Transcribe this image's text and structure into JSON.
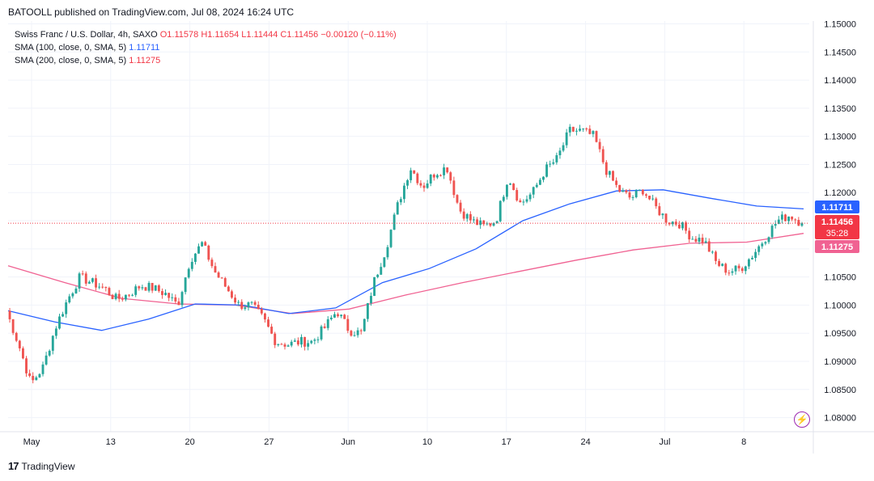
{
  "header": {
    "published": "BATOOLL published on TradingView.com, Jul 08, 2024 16:24 UTC"
  },
  "legend": {
    "symbol": "Swiss Franc / U.S. Dollar, 4h, SAXO",
    "open": "O1.11578",
    "high": "H1.11654",
    "low": "L1.11444",
    "close": "C1.11456",
    "change": "−0.00120 (−0.11%)",
    "sma100_label": "SMA (100, close, 0, SMA, 5)",
    "sma100_value": "1.11711",
    "sma200_label": "SMA (200, close, 0, SMA, 5)",
    "sma200_value": "1.11275"
  },
  "price_tags": {
    "sma100": "1.11711",
    "last": "1.11456",
    "countdown": "35:28",
    "sma200": "1.11275"
  },
  "footer": {
    "brand": "TradingView"
  },
  "colors": {
    "up": "#26a69a",
    "down": "#ef5350",
    "sma100": "#2962ff",
    "sma200": "#f06292",
    "last_price": "#f23645"
  },
  "chart_data": {
    "type": "candlestick",
    "y_axis": {
      "ylim": [
        1.0775,
        1.1505
      ],
      "ticks": [
        "1.15000",
        "1.14500",
        "1.14000",
        "1.13500",
        "1.13000",
        "1.12500",
        "1.12000",
        "1.11500",
        "1.11000",
        "1.10500",
        "1.10000",
        "1.09500",
        "1.09000",
        "1.08500",
        "1.08000"
      ]
    },
    "x_axis": {
      "ticks": [
        "May",
        "13",
        "20",
        "27",
        "Jun",
        "10",
        "17",
        "24",
        "Jul",
        "8"
      ]
    },
    "close_path": [
      [
        "Apr 30",
        1.099
      ],
      [
        "May 1",
        1.093
      ],
      [
        "May 2",
        1.086
      ],
      [
        "May 3",
        1.089
      ],
      [
        "May 3b",
        1.096
      ],
      [
        "May 4",
        1.101
      ],
      [
        "May 6",
        1.105
      ],
      [
        "May 7",
        1.104
      ],
      [
        "May 8",
        1.103
      ],
      [
        "May 9",
        1.101
      ],
      [
        "May 10",
        1.102
      ],
      [
        "May 12",
        1.1035
      ],
      [
        "May 13",
        1.103
      ],
      [
        "May 14",
        1.102
      ],
      [
        "May 15",
        1.1
      ],
      [
        "May 16",
        1.108
      ],
      [
        "May 17",
        1.111
      ],
      [
        "May 17b",
        1.106
      ],
      [
        "May 18",
        1.103
      ],
      [
        "May 20",
        1.1
      ],
      [
        "May 21",
        1.1
      ],
      [
        "May 22",
        1.0975
      ],
      [
        "May 23",
        1.0935
      ],
      [
        "May 24",
        1.093
      ],
      [
        "May 26",
        1.0935
      ],
      [
        "May 27",
        1.0935
      ],
      [
        "May 28",
        1.096
      ],
      [
        "May 29",
        1.099
      ],
      [
        "May 30",
        1.0955
      ],
      [
        "May 31",
        1.095
      ],
      [
        "Jun 1",
        1.104
      ],
      [
        "Jun 2",
        1.11
      ],
      [
        "Jun 3",
        1.118
      ],
      [
        "Jun 4",
        1.1245
      ],
      [
        "Jun 5",
        1.121
      ],
      [
        "Jun 6",
        1.1235
      ],
      [
        "Jun 7",
        1.1245
      ],
      [
        "Jun 8",
        1.117
      ],
      [
        "Jun 10",
        1.115
      ],
      [
        "Jun 11",
        1.114
      ],
      [
        "Jun 12",
        1.115
      ],
      [
        "Jun 13",
        1.123
      ],
      [
        "Jun 14",
        1.118
      ],
      [
        "Jun 15",
        1.12
      ],
      [
        "Jun 17",
        1.124
      ],
      [
        "Jun 18",
        1.126
      ],
      [
        "Jun 19",
        1.131
      ],
      [
        "Jun 20",
        1.131
      ],
      [
        "Jun 21",
        1.13
      ],
      [
        "Jun 21b",
        1.124
      ],
      [
        "Jun 22",
        1.1205
      ],
      [
        "Jun 24",
        1.119
      ],
      [
        "Jun 25",
        1.1205
      ],
      [
        "Jun 26",
        1.1175
      ],
      [
        "Jun 27",
        1.115
      ],
      [
        "Jun 28",
        1.1145
      ],
      [
        "Jun 29",
        1.112
      ],
      [
        "Jul 1",
        1.1115
      ],
      [
        "Jul 1b",
        1.1075
      ],
      [
        "Jul 2",
        1.106
      ],
      [
        "Jul 3",
        1.1065
      ],
      [
        "Jul 4",
        1.109
      ],
      [
        "Jul 5",
        1.112
      ],
      [
        "Jul 6",
        1.115
      ],
      [
        "Jul 8",
        1.116
      ],
      [
        "Jul 8b",
        1.11456
      ]
    ],
    "sma100_path": [
      [
        "Apr 30",
        1.099
      ],
      [
        "May 1",
        1.097
      ],
      [
        "May 3",
        1.0955
      ],
      [
        "May 13",
        1.0975
      ],
      [
        "May 20",
        1.1002
      ],
      [
        "May 27",
        1.1
      ],
      [
        "May 29",
        1.0985
      ],
      [
        "Jun 1",
        1.0995
      ],
      [
        "Jun 6",
        1.104
      ],
      [
        "Jun 10",
        1.1065
      ],
      [
        "Jun 14",
        1.11
      ],
      [
        "Jun 18",
        1.115
      ],
      [
        "Jun 21",
        1.118
      ],
      [
        "Jun 24",
        1.1203
      ],
      [
        "Jun 26",
        1.1205
      ],
      [
        "Jul 1",
        1.119
      ],
      [
        "Jul 5",
        1.1176
      ],
      [
        "Jul 8b",
        1.11711
      ]
    ],
    "sma200_path": [
      [
        "Apr 30",
        1.107
      ],
      [
        "May 3",
        1.104
      ],
      [
        "May 9",
        1.1012
      ],
      [
        "May 16",
        1.1002
      ],
      [
        "May 23",
        1.1
      ],
      [
        "May 29",
        1.0985
      ],
      [
        "Jun 3",
        1.0993
      ],
      [
        "Jun 8",
        1.1018
      ],
      [
        "Jun 13",
        1.104
      ],
      [
        "Jun 18",
        1.106
      ],
      [
        "Jun 21",
        1.108
      ],
      [
        "Jun 26",
        1.1098
      ],
      [
        "Jul 1",
        1.111
      ],
      [
        "Jul 5",
        1.1112
      ],
      [
        "Jul 8b",
        1.11275
      ]
    ],
    "last_price": 1.11456
  }
}
